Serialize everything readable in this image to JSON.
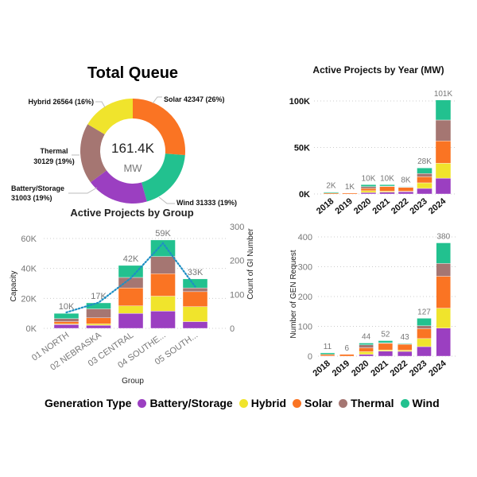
{
  "colors": {
    "Battery/Storage": "#9b3fc1",
    "Hybrid": "#f0e42c",
    "Solar": "#fa7423",
    "Thermal": "#a57672",
    "Wind": "#22c18f",
    "line": "#1f8fc4"
  },
  "legend": {
    "title": "Generation Type",
    "items": [
      "Battery/Storage",
      "Hybrid",
      "Solar",
      "Thermal",
      "Wind"
    ]
  },
  "chart_data": [
    {
      "type": "pie",
      "variant": "donut",
      "title": "Total Queue",
      "center_value": "161.4K",
      "center_unit": "MW",
      "slices": [
        {
          "name": "Solar",
          "value": 42347,
          "label": "Solar 42347 (26%)"
        },
        {
          "name": "Wind",
          "value": 31333,
          "label": "Wind 31333 (19%)"
        },
        {
          "name": "Battery/Storage",
          "value": 31003,
          "label_line1": "Battery/Storage",
          "label_line2": "31003 (19%)"
        },
        {
          "name": "Thermal",
          "value": 30129,
          "label_line1": "Thermal",
          "label_line2": "30129 (19%)"
        },
        {
          "name": "Hybrid",
          "value": 26564,
          "label": "Hybrid 26564 (16%)"
        }
      ]
    },
    {
      "type": "bar",
      "stacked": true,
      "title": "Active Projects by Group",
      "xlabel": "Group",
      "ylabel": "Capacity",
      "y2label": "Count of GI Number",
      "categories": [
        "01 NORTH",
        "02 NEBRASKA",
        "03 CENTRAL",
        "04 SOUTHE...",
        "05 SOUTH..."
      ],
      "ylim": [
        0,
        70000
      ],
      "yticks": [
        0,
        20000,
        40000,
        60000
      ],
      "ytick_labels": [
        "0K",
        "20K",
        "40K",
        "60K"
      ],
      "y2lim": [
        0,
        300
      ],
      "y2ticks": [
        0,
        100,
        200,
        300
      ],
      "y2tick_labels": [
        "0",
        "100",
        "200",
        "300"
      ],
      "series": [
        {
          "name": "Battery/Storage",
          "values": [
            2500,
            2000,
            10000,
            11500,
            4500
          ]
        },
        {
          "name": "Hybrid",
          "values": [
            500,
            1000,
            5000,
            10000,
            10000
          ]
        },
        {
          "name": "Solar",
          "values": [
            1500,
            4000,
            12000,
            15000,
            10000
          ]
        },
        {
          "name": "Thermal",
          "values": [
            2000,
            6000,
            7000,
            11500,
            2500
          ]
        },
        {
          "name": "Wind",
          "values": [
            3500,
            4000,
            8000,
            11000,
            6000
          ]
        }
      ],
      "totals_labels": [
        "10K",
        "17K",
        "42K",
        "59K",
        "33K"
      ],
      "line_series": {
        "name": "Count of GI Number",
        "axis": "right",
        "values": [
          47,
          76,
          148,
          251,
          123
        ]
      },
      "grid": true
    },
    {
      "type": "bar",
      "stacked": true,
      "title": "Active Projects by Year (MW)",
      "categories": [
        "2018",
        "2019",
        "2020",
        "2021",
        "2022",
        "2023",
        "2024"
      ],
      "ylim": [
        0,
        110000
      ],
      "yticks": [
        0,
        50000,
        100000
      ],
      "ytick_labels": [
        "0K",
        "50K",
        "100K"
      ],
      "series": [
        {
          "name": "Battery/Storage",
          "values": [
            0,
            0,
            1500,
            2000,
            2500,
            6000,
            17000
          ]
        },
        {
          "name": "Hybrid",
          "values": [
            0,
            0,
            2000,
            1000,
            500,
            6000,
            16000
          ]
        },
        {
          "name": "Solar",
          "values": [
            1000,
            1000,
            2500,
            5000,
            4000,
            6500,
            24000
          ]
        },
        {
          "name": "Thermal",
          "values": [
            0,
            0,
            2000,
            500,
            500,
            3500,
            22500
          ]
        },
        {
          "name": "Wind",
          "values": [
            1000,
            0,
            2000,
            1500,
            500,
            6000,
            21500
          ]
        }
      ],
      "totals_labels": [
        "2K",
        "1K",
        "10K",
        "10K",
        "8K",
        "28K",
        "101K"
      ],
      "grid": true
    },
    {
      "type": "bar",
      "stacked": true,
      "ylabel": "Number of GEN Request",
      "categories": [
        "2018",
        "2019",
        "2020",
        "2021",
        "2022",
        "2023",
        "2024"
      ],
      "ylim": [
        0,
        420
      ],
      "yticks": [
        0,
        100,
        200,
        300,
        400
      ],
      "ytick_labels": [
        "0",
        "100",
        "200",
        "300",
        "400"
      ],
      "series": [
        {
          "name": "Battery/Storage",
          "values": [
            1,
            0,
            6,
            17,
            16,
            32,
            94
          ]
        },
        {
          "name": "Hybrid",
          "values": [
            0,
            0,
            9,
            4,
            4,
            27,
            67
          ]
        },
        {
          "name": "Solar",
          "values": [
            5,
            6,
            13,
            22,
            20,
            33,
            107
          ]
        },
        {
          "name": "Thermal",
          "values": [
            0,
            0,
            10,
            2,
            1,
            10,
            43
          ]
        },
        {
          "name": "Wind",
          "values": [
            5,
            0,
            6,
            7,
            2,
            25,
            69
          ]
        }
      ],
      "totals_labels": [
        "11",
        "6",
        "44",
        "52",
        "43",
        "127",
        "380"
      ],
      "grid": true
    }
  ]
}
